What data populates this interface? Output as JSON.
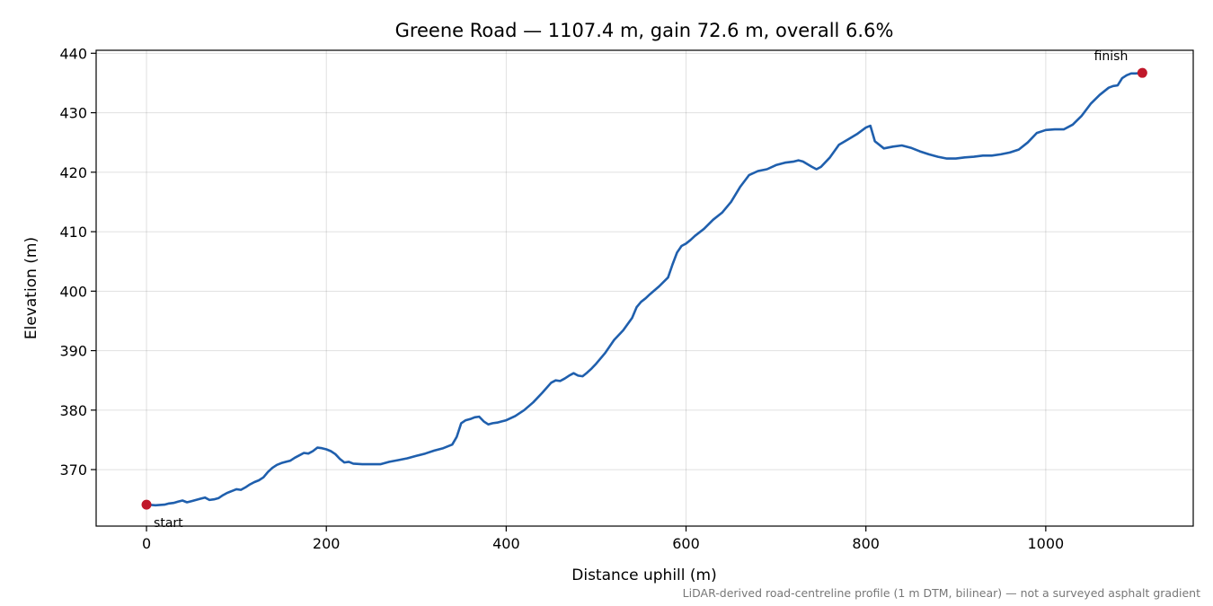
{
  "chart_data": {
    "type": "line",
    "title": "Greene Road — 1107.4 m, gain 72.6 m, overall 6.6%",
    "xlabel": "Distance uphill (m)",
    "ylabel": "Elevation (m)",
    "xlim": [
      -56,
      1164
    ],
    "ylim": [
      360.5,
      440.5
    ],
    "xticks": [
      0,
      200,
      400,
      600,
      800,
      1000
    ],
    "yticks": [
      370,
      380,
      390,
      400,
      410,
      420,
      430,
      440
    ],
    "grid": true,
    "line_color": "#1f5fad",
    "marker_color": "#c0182a",
    "series": [
      {
        "x": [
          0,
          10,
          20,
          25,
          30,
          35,
          40,
          45,
          50,
          55,
          60,
          65,
          70,
          75,
          80,
          85,
          90,
          95,
          100,
          105,
          110,
          115,
          120,
          125,
          130,
          135,
          140,
          145,
          150,
          155,
          160,
          165,
          170,
          175,
          180,
          185,
          190,
          195,
          200,
          205,
          210,
          215,
          220,
          225,
          230,
          240,
          250,
          260,
          270,
          280,
          290,
          300,
          310,
          320,
          330,
          340,
          345,
          350,
          355,
          360,
          365,
          370,
          375,
          380,
          385,
          390,
          395,
          400,
          410,
          420,
          430,
          440,
          450,
          455,
          460,
          465,
          470,
          475,
          480,
          485,
          490,
          495,
          500,
          510,
          520,
          530,
          540,
          545,
          550,
          555,
          560,
          570,
          580,
          585,
          590,
          595,
          600,
          605,
          610,
          620,
          630,
          640,
          650,
          660,
          670,
          680,
          690,
          700,
          710,
          720,
          725,
          730,
          740,
          745,
          750,
          760,
          770,
          780,
          790,
          800,
          805,
          810,
          815,
          820,
          830,
          840,
          850,
          860,
          870,
          880,
          890,
          900,
          910,
          920,
          930,
          940,
          950,
          960,
          970,
          980,
          990,
          1000,
          1010,
          1020,
          1030,
          1040,
          1050,
          1060,
          1070,
          1075,
          1080,
          1085,
          1090,
          1095,
          1100,
          1107.4
        ],
        "y": [
          364.1,
          364.0,
          364.1,
          364.3,
          364.4,
          364.6,
          364.8,
          364.5,
          364.7,
          364.9,
          365.1,
          365.3,
          364.9,
          365.0,
          365.2,
          365.7,
          366.1,
          366.4,
          366.7,
          366.6,
          367.0,
          367.5,
          367.9,
          368.2,
          368.7,
          369.6,
          370.3,
          370.8,
          371.1,
          371.3,
          371.5,
          372.0,
          372.4,
          372.8,
          372.7,
          373.1,
          373.7,
          373.6,
          373.4,
          373.1,
          372.6,
          371.8,
          371.2,
          371.3,
          371.0,
          370.9,
          370.9,
          370.9,
          371.3,
          371.6,
          371.9,
          372.3,
          372.7,
          373.2,
          373.6,
          374.2,
          375.5,
          377.8,
          378.3,
          378.5,
          378.8,
          378.9,
          378.1,
          377.6,
          377.8,
          377.9,
          378.1,
          378.3,
          379.0,
          380.0,
          381.3,
          382.9,
          384.6,
          385.0,
          384.9,
          385.3,
          385.8,
          386.2,
          385.8,
          385.7,
          386.3,
          387.0,
          387.8,
          389.6,
          391.8,
          393.4,
          395.5,
          397.3,
          398.2,
          398.8,
          399.5,
          400.8,
          402.3,
          404.5,
          406.5,
          407.6,
          408.0,
          408.6,
          409.3,
          410.5,
          412.0,
          413.2,
          415.0,
          417.5,
          419.5,
          420.2,
          420.5,
          421.2,
          421.6,
          421.8,
          422.0,
          421.8,
          420.9,
          420.5,
          420.9,
          422.5,
          424.6,
          425.5,
          426.4,
          427.5,
          427.8,
          425.2,
          424.6,
          424.0,
          424.3,
          424.5,
          424.1,
          423.5,
          423.0,
          422.6,
          422.3,
          422.3,
          422.5,
          422.6,
          422.8,
          422.8,
          423.0,
          423.3,
          423.8,
          425.0,
          426.6,
          427.1,
          427.2,
          427.2,
          428.0,
          429.5,
          431.5,
          433.0,
          434.2,
          434.5,
          434.6,
          435.8,
          436.3,
          436.6,
          436.6,
          436.7
        ]
      }
    ],
    "annotations": [
      {
        "text": "start",
        "x": 0,
        "y": 364.1
      },
      {
        "text": "finish",
        "x": 1107.4,
        "y": 436.7
      }
    ],
    "footnote": "LiDAR-derived road-centreline profile (1 m DTM, bilinear) — not a surveyed asphalt gradient"
  }
}
